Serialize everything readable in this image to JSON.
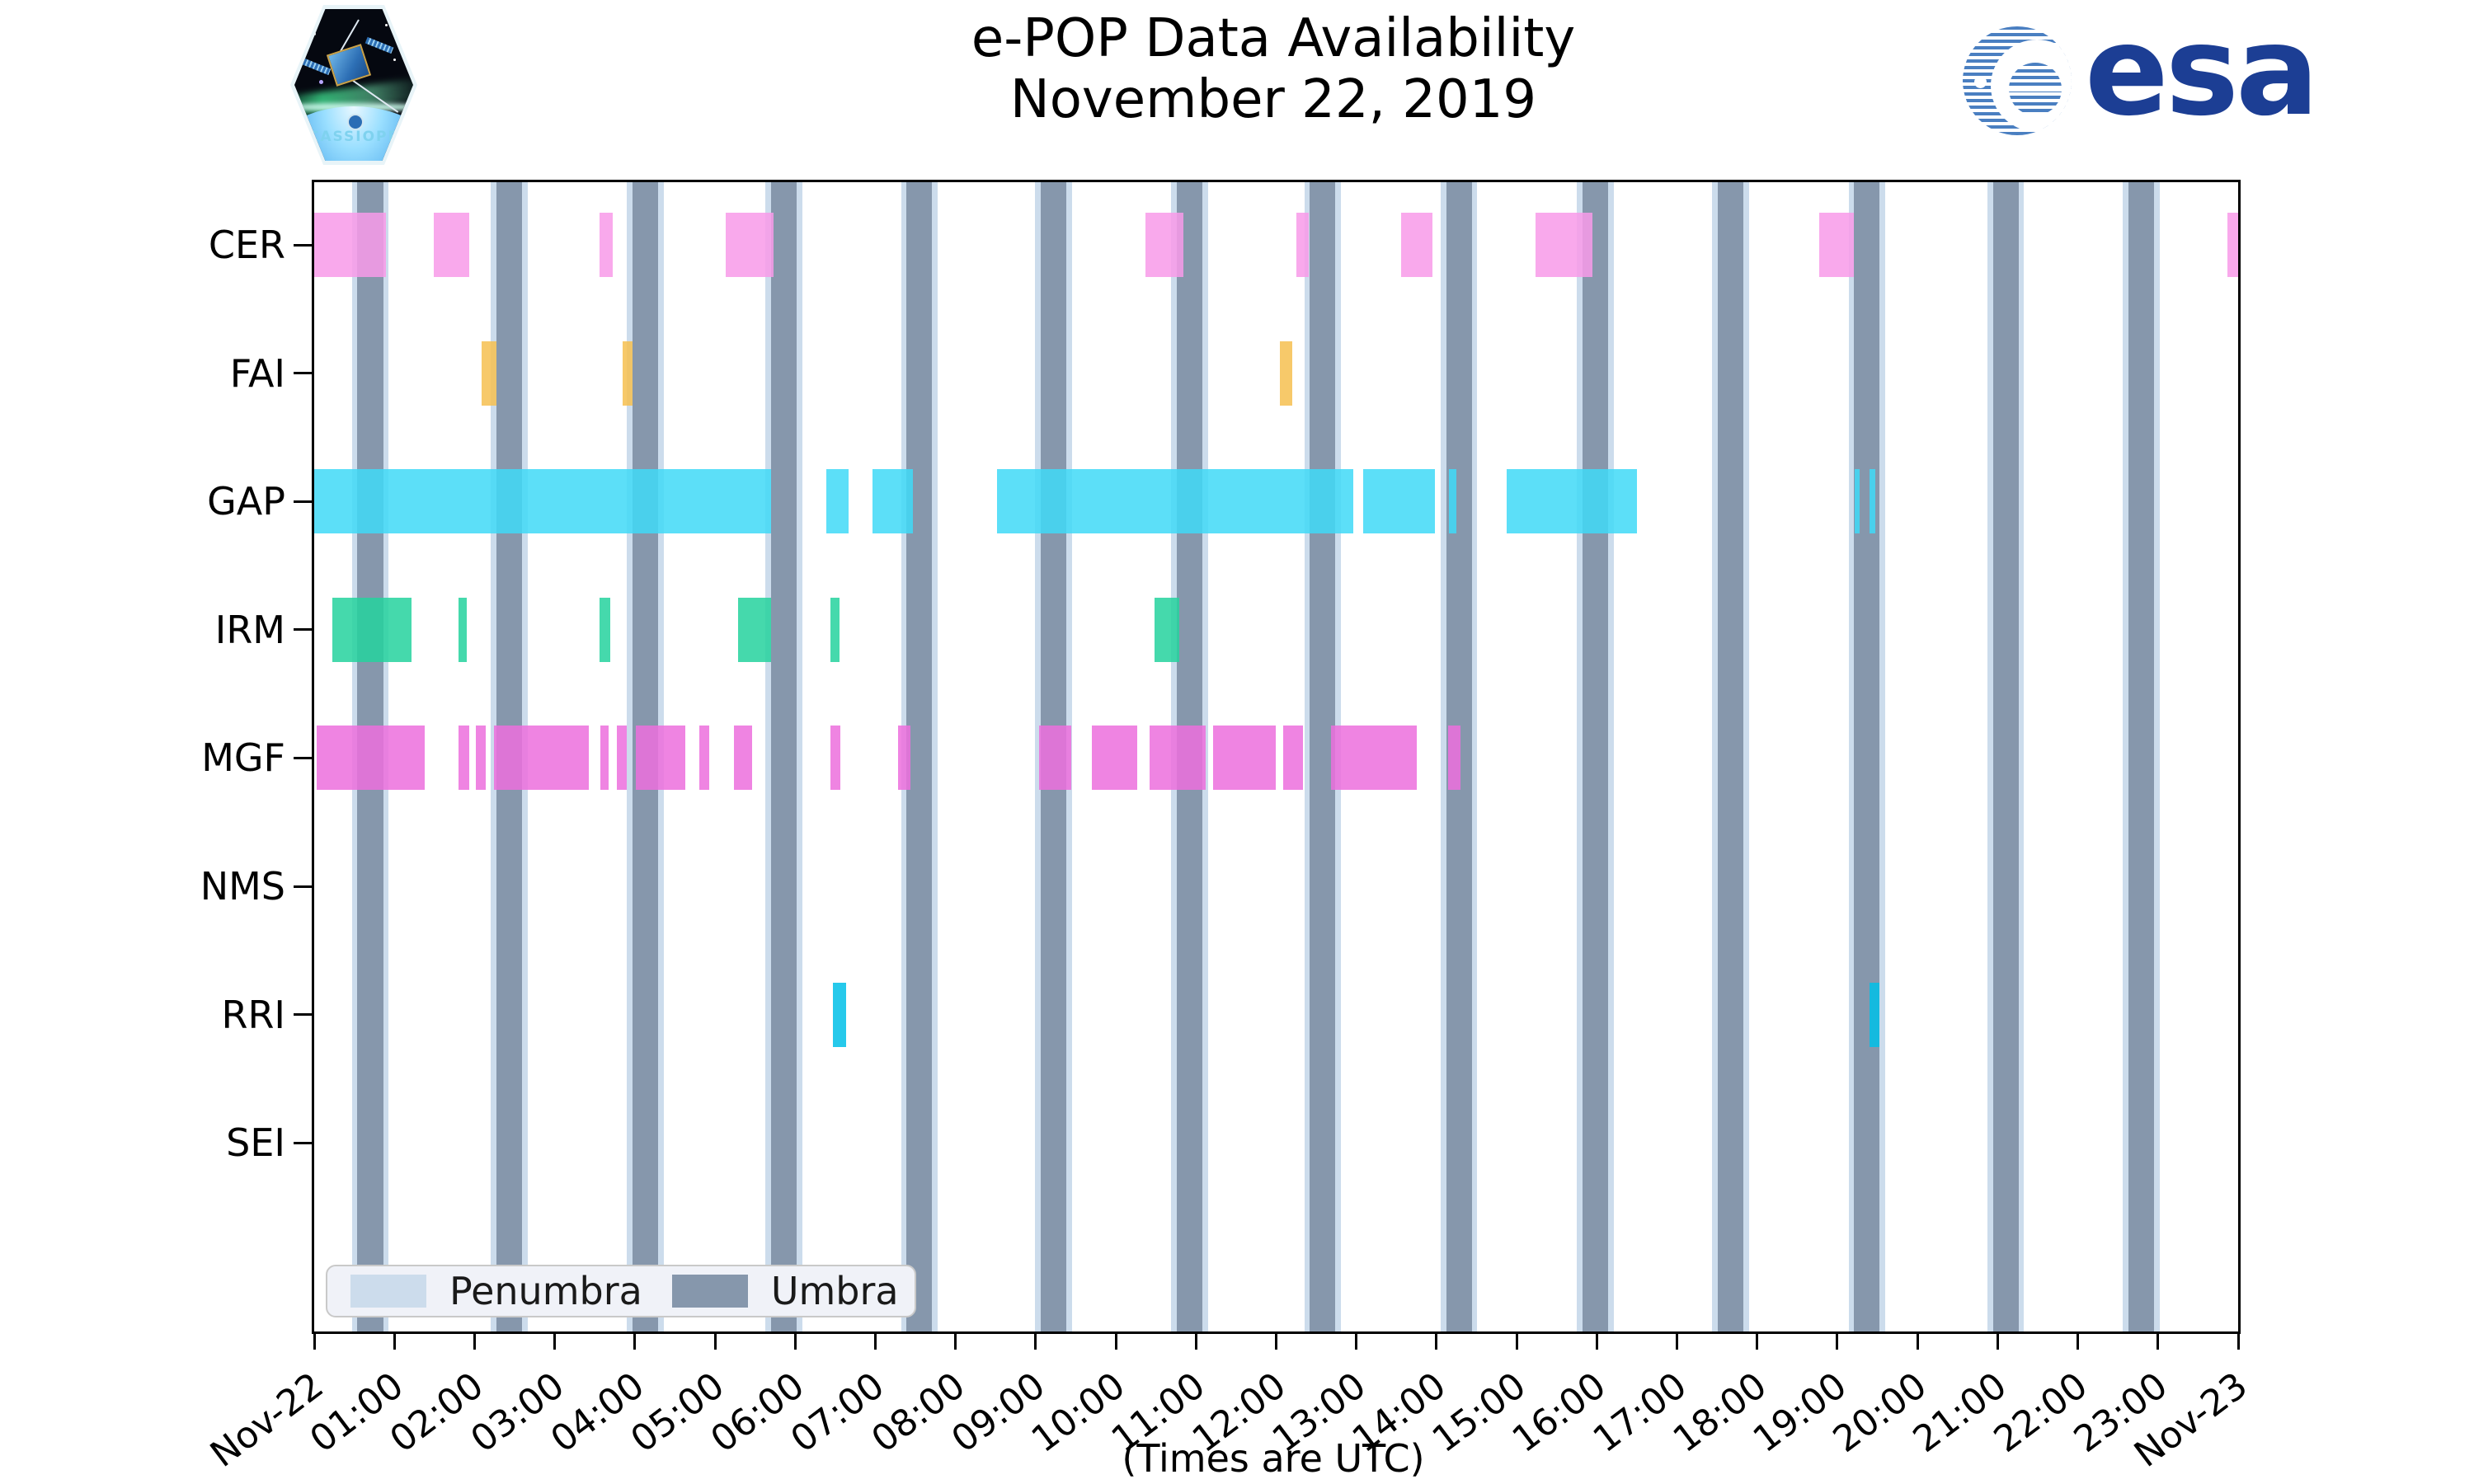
{
  "header": {
    "title_line1": "e-POP Data Availability",
    "title_line2": "November 22, 2019",
    "cassiope_label": "CASSIOPE",
    "esa_label": "esa"
  },
  "legend": {
    "items": [
      {
        "label": "Penumbra",
        "color": "#ccdcec"
      },
      {
        "label": "Umbra",
        "color": "#8697ac"
      }
    ]
  },
  "caption": "(Times are UTC)",
  "chart_data": {
    "type": "bar",
    "subtype": "broken-horizontal-availability-timeline",
    "title": "e-POP Data Availability November 22, 2019",
    "xlabel": "(Times are UTC)",
    "x_start": "Nov-22 00:00 UTC",
    "x_end": "Nov-23 00:00 UTC",
    "x_range_hours": [
      0,
      24
    ],
    "x_tick_labels": [
      "Nov-22",
      "01:00",
      "02:00",
      "03:00",
      "04:00",
      "05:00",
      "06:00",
      "07:00",
      "08:00",
      "09:00",
      "10:00",
      "11:00",
      "12:00",
      "13:00",
      "14:00",
      "15:00",
      "16:00",
      "17:00",
      "18:00",
      "19:00",
      "20:00",
      "21:00",
      "22:00",
      "23:00",
      "Nov-23"
    ],
    "categories": [
      "CER",
      "FAI",
      "GAP",
      "IRM",
      "MGF",
      "NMS",
      "RRI",
      "SEI"
    ],
    "series": [
      {
        "name": "CER",
        "color": "#f89ae9",
        "intervals_h": [
          [
            0.0,
            0.89
          ],
          [
            1.49,
            1.93
          ],
          [
            3.56,
            3.72
          ],
          [
            5.13,
            5.73
          ],
          [
            10.37,
            10.84
          ],
          [
            12.25,
            12.41
          ],
          [
            13.56,
            13.95
          ],
          [
            15.24,
            15.95
          ],
          [
            18.77,
            19.21
          ],
          [
            23.87,
            24.0
          ]
        ]
      },
      {
        "name": "FAI",
        "color": "#f6c050",
        "intervals_h": [
          [
            2.09,
            2.27
          ],
          [
            3.85,
            3.97
          ],
          [
            12.05,
            12.2
          ]
        ]
      },
      {
        "name": "GAP",
        "color": "#3fd9f7",
        "intervals_h": [
          [
            0.0,
            5.7
          ],
          [
            6.39,
            6.67
          ],
          [
            6.96,
            7.47
          ],
          [
            8.52,
            12.96
          ],
          [
            13.09,
            13.98
          ],
          [
            14.16,
            14.25
          ],
          [
            14.88,
            16.5
          ],
          [
            19.22,
            19.28
          ],
          [
            19.4,
            19.47
          ]
        ]
      },
      {
        "name": "IRM",
        "color": "#25d29e",
        "intervals_h": [
          [
            0.23,
            1.21
          ],
          [
            1.8,
            1.9
          ],
          [
            3.56,
            3.69
          ],
          [
            5.29,
            5.7
          ],
          [
            6.44,
            6.55
          ],
          [
            10.48,
            10.79
          ]
        ]
      },
      {
        "name": "MGF",
        "color": "#ec6edd",
        "intervals_h": [
          [
            0.03,
            1.38
          ],
          [
            1.8,
            1.93
          ],
          [
            2.02,
            2.14
          ],
          [
            2.24,
            3.43
          ],
          [
            3.57,
            3.67
          ],
          [
            3.78,
            3.9
          ],
          [
            4.01,
            4.63
          ],
          [
            4.8,
            4.93
          ],
          [
            5.24,
            5.46
          ],
          [
            6.44,
            6.56
          ],
          [
            7.28,
            7.44
          ],
          [
            9.04,
            9.44
          ],
          [
            9.7,
            10.27
          ],
          [
            10.42,
            11.12
          ],
          [
            11.21,
            12.0
          ],
          [
            12.09,
            12.33
          ],
          [
            12.68,
            13.75
          ],
          [
            14.14,
            14.3
          ]
        ]
      },
      {
        "name": "NMS",
        "color": "#c8c8c8",
        "intervals_h": []
      },
      {
        "name": "RRI",
        "color": "#00bfe8",
        "intervals_h": [
          [
            6.47,
            6.64
          ],
          [
            19.4,
            19.53
          ]
        ]
      },
      {
        "name": "SEI",
        "color": "#c8c8c8",
        "intervals_h": []
      }
    ],
    "shadow": {
      "umbra_centers_h": [
        0.7,
        2.43,
        4.13,
        5.86,
        7.55,
        9.22,
        10.92,
        12.58,
        14.28,
        15.98,
        17.67,
        19.37,
        21.1,
        22.79
      ],
      "umbra_width_h": 0.32,
      "penumbra_width_h": 0.46,
      "umbra_color": "#8697ac",
      "penumbra_color": "#ccdcec"
    },
    "legend_position": "lower left inside axes",
    "grid": false
  }
}
